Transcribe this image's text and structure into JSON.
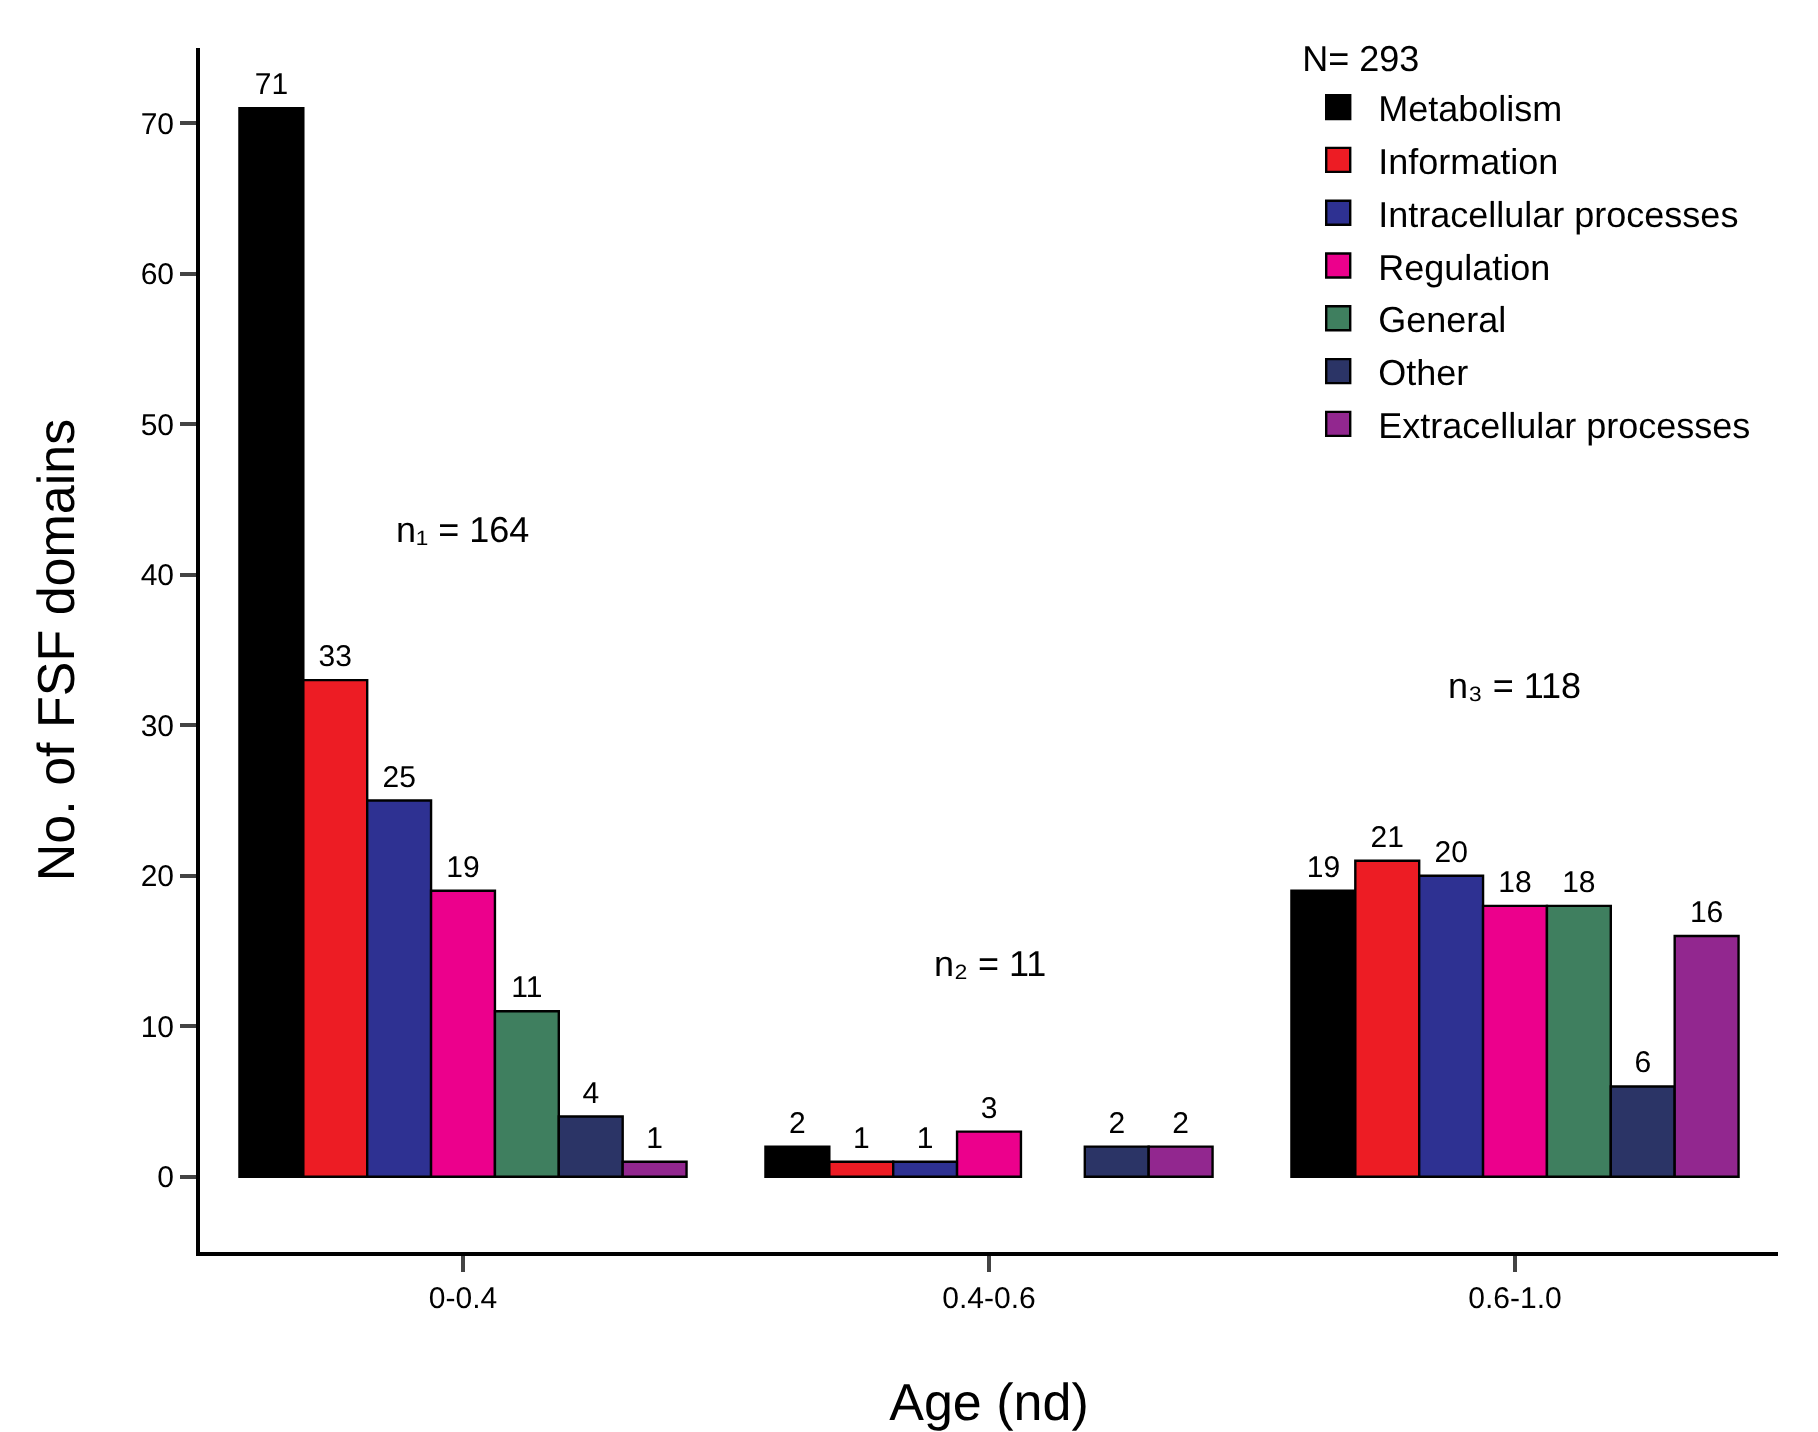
{
  "chart_data": {
    "type": "bar",
    "xlabel": "Age (nd)",
    "ylabel": "No. of FSF domains",
    "legend_title": "N= 293",
    "legend": "top right",
    "grid": false,
    "categories": [
      "0-0.4",
      "0.4-0.6",
      "0.6-1.0"
    ],
    "ylim": [
      -5,
      75
    ],
    "yticks": [
      0,
      10,
      20,
      30,
      40,
      50,
      60,
      70
    ],
    "series": [
      {
        "name": "Metabolism",
        "color": "#000000",
        "values": [
          71,
          2,
          19
        ],
        "value_labels": [
          "71",
          "2",
          "19"
        ]
      },
      {
        "name": "Information",
        "color": "#ed1c24",
        "values": [
          33,
          1,
          21
        ],
        "value_labels": [
          "33",
          "1",
          "21"
        ]
      },
      {
        "name": "Intracellular processes",
        "color": "#2e3192",
        "values": [
          25,
          1,
          20
        ],
        "value_labels": [
          "25",
          "1",
          "20"
        ]
      },
      {
        "name": "Regulation",
        "color": "#ec008c",
        "values": [
          19,
          3,
          18
        ],
        "value_labels": [
          "19",
          "3",
          "18"
        ]
      },
      {
        "name": "General",
        "color": "#3f7f5f",
        "values": [
          11,
          null,
          18
        ],
        "value_labels": [
          "11",
          null,
          "18"
        ]
      },
      {
        "name": "Other",
        "color": "#2b3466",
        "values": [
          4,
          2,
          6
        ],
        "value_labels": [
          "4",
          "2",
          "6"
        ]
      },
      {
        "name": "Extracellular processes",
        "color": "#92278f",
        "values": [
          1,
          2,
          16
        ],
        "value_labels": [
          "1",
          "2",
          "16"
        ]
      }
    ],
    "annotations": [
      "n₁ = 164",
      "n₂ = 11",
      "n₃ = 118"
    ]
  }
}
